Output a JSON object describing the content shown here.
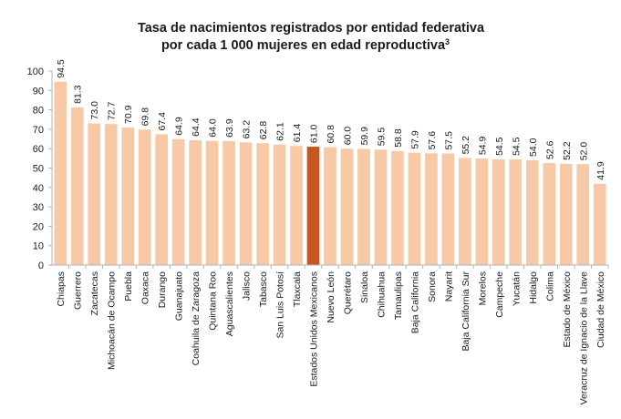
{
  "chart_data": {
    "type": "bar",
    "title": "Tasa de nacimientos registrados por entidad federativa",
    "subtitle": "por cada 1 000 mujeres en edad reproductiva",
    "subtitle_superscript": "3",
    "xlabel": "",
    "ylabel": "",
    "ylim": [
      0,
      100
    ],
    "yticks": [
      0,
      10,
      20,
      30,
      40,
      50,
      60,
      70,
      80,
      90,
      100
    ],
    "grid": false,
    "legend": "none",
    "colors": {
      "bar": "#f8c9a6",
      "highlight": "#c8561f",
      "axis": "#b3b3b3",
      "text": "#1a1a1a"
    },
    "highlight_category": "Estados Unidos Mexicanos",
    "categories": [
      "Chiapas",
      "Guerrero",
      "Zacatecas",
      "Michoacán de Ocampo",
      "Puebla",
      "Oaxaca",
      "Durango",
      "Guanajuato",
      "Coahuila de Zaragoza",
      "Quintana Roo",
      "Aguascalientes",
      "Jalisco",
      "Tabasco",
      "San Luis Potosí",
      "Tlaxcala",
      "Estados Unidos Mexicanos",
      "Nuevo León",
      "Querétaro",
      "Sinaloa",
      "Chihuahua",
      "Tamaulipas",
      "Baja California",
      "Sonora",
      "Nayarit",
      "Baja California Sur",
      "Morelos",
      "Campeche",
      "Yucatán",
      "Hidalgo",
      "Colima",
      "Estado de México",
      "Veracruz de Ignacio de la Llave",
      "Ciudad de México"
    ],
    "values": [
      94.5,
      81.3,
      73.0,
      72.7,
      70.9,
      69.8,
      67.4,
      64.9,
      64.4,
      64.0,
      63.9,
      63.2,
      62.8,
      62.1,
      61.4,
      61.0,
      60.8,
      60.0,
      59.9,
      59.5,
      58.8,
      57.9,
      57.6,
      57.5,
      55.2,
      54.9,
      54.5,
      54.5,
      54.0,
      52.6,
      52.2,
      52.0,
      41.9
    ],
    "value_labels": [
      "94.5",
      "81.3",
      "73.0",
      "72.7",
      "70.9",
      "69.8",
      "67.4",
      "64.9",
      "64.4",
      "64.0",
      "63.9",
      "63.2",
      "62.8",
      "62.1",
      "61.4",
      "61.0",
      "60.8",
      "60.0",
      "59.9",
      "59.5",
      "58.8",
      "57.9",
      "57.6",
      "57.5",
      "55.2",
      "54.9",
      "54.5",
      "54.5",
      "54.0",
      "52.6",
      "52.2",
      "52.0",
      "41.9"
    ]
  }
}
